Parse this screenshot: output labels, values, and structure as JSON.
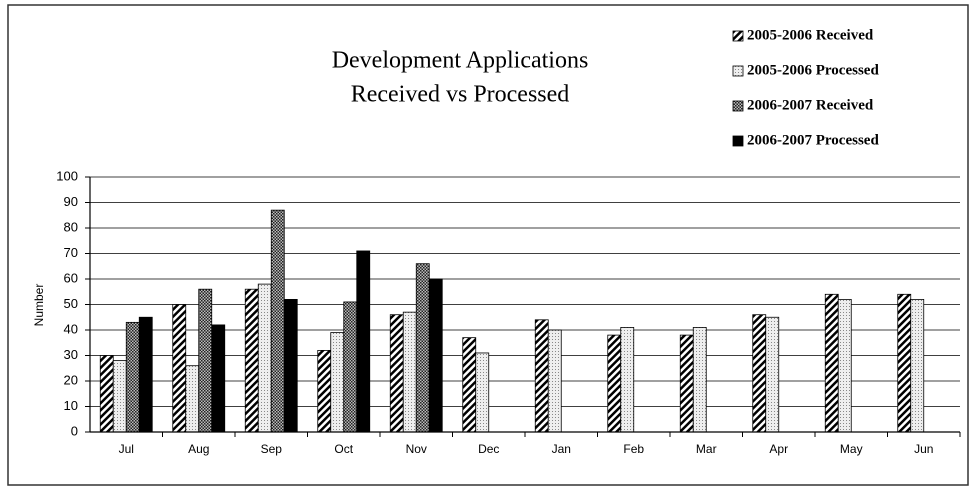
{
  "chart_data": {
    "type": "bar",
    "title": [
      "Development Applications",
      "Received vs Processed"
    ],
    "y_label": "Number",
    "categories": [
      "Jul",
      "Aug",
      "Sep",
      "Oct",
      "Nov",
      "Dec",
      "Jan",
      "Feb",
      "Mar",
      "Apr",
      "May",
      "Jun"
    ],
    "series": [
      {
        "name": "2005-2006 Received",
        "color": "#000000",
        "pattern": "diagonal",
        "values": [
          30,
          50,
          56,
          32,
          46,
          37,
          44,
          38,
          38,
          46,
          54,
          54
        ]
      },
      {
        "name": "2005-2006 Processed",
        "color": "#bbbbbb",
        "pattern": "dots",
        "values": [
          28,
          26,
          58,
          39,
          47,
          31,
          40,
          41,
          41,
          45,
          52,
          52
        ]
      },
      {
        "name": "2006-2007 Received",
        "color": "#555555",
        "pattern": "checker",
        "values": [
          43,
          56,
          87,
          51,
          66,
          null,
          null,
          null,
          null,
          null,
          null,
          null
        ]
      },
      {
        "name": "2006-2007 Processed",
        "color": "#000000",
        "pattern": "solid",
        "values": [
          45,
          42,
          52,
          71,
          60,
          null,
          null,
          null,
          null,
          null,
          null,
          null
        ]
      }
    ],
    "ylim": [
      0,
      100
    ],
    "yticks": [
      0,
      10,
      20,
      30,
      40,
      50,
      60,
      70,
      80,
      90,
      100
    ],
    "grid": true,
    "legend": "top-right"
  }
}
